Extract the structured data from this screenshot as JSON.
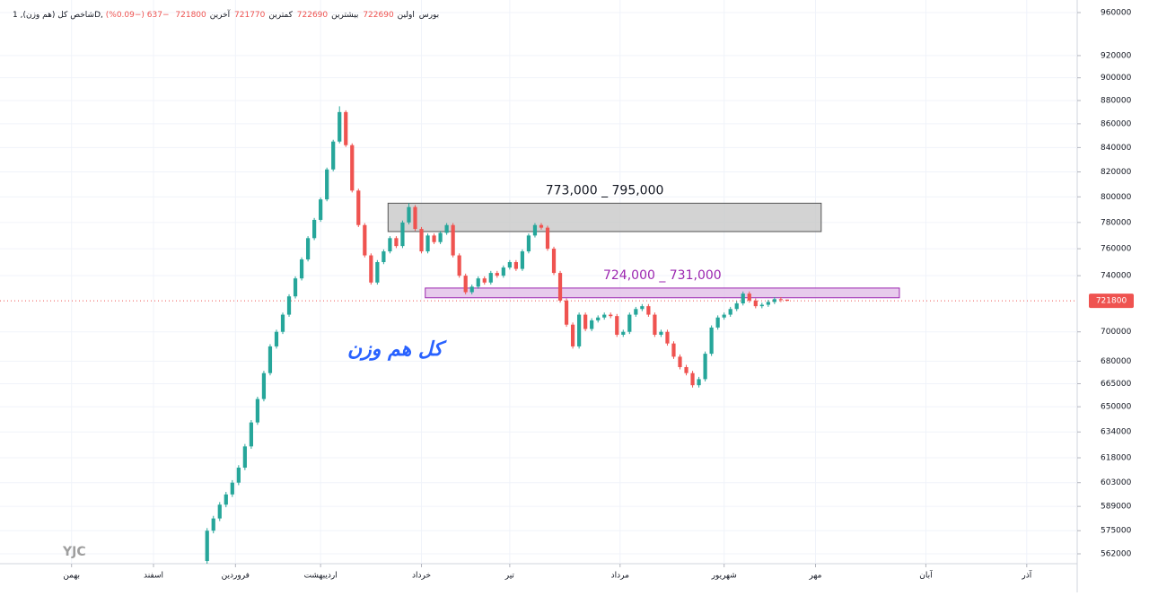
{
  "chart_data": {
    "type": "candlestick",
    "title": "شاخص کل (هم وزن), 1D, بورس",
    "ohlc_header": [
      {
        "label": "اولین",
        "value": 722690
      },
      {
        "label": "بیشترین",
        "value": 722690
      },
      {
        "label": "کمترین",
        "value": 721770
      },
      {
        "label": "آخرین",
        "value": 721800
      }
    ],
    "change": "−637 (−0.09%)",
    "annotation": "کل هم وزن",
    "watermark": "YJC",
    "log_scale": true,
    "grid": true,
    "up_color": "#26a69a",
    "down_color": "#ef5350",
    "ylim": [
      562000,
      960000
    ],
    "yticks": [
      562000,
      575000,
      589000,
      603000,
      618000,
      634000,
      650000,
      665000,
      680000,
      700000,
      740000,
      760000,
      780000,
      800000,
      820000,
      840000,
      860000,
      880000,
      900000,
      920000,
      960000
    ],
    "xlim": [
      0,
      168
    ],
    "xticks": [
      {
        "value": 8.5,
        "label": "بهمن"
      },
      {
        "value": 21.5,
        "label": "اسفند"
      },
      {
        "value": 34.5,
        "label": "فروردین"
      },
      {
        "value": 48,
        "label": "اردیبهشت"
      },
      {
        "value": 64,
        "label": "خرداد"
      },
      {
        "value": 78,
        "label": "تیر"
      },
      {
        "value": 95.5,
        "label": "مرداد"
      },
      {
        "value": 112,
        "label": "شهریور"
      },
      {
        "value": 126.5,
        "label": "مهر"
      },
      {
        "value": 144,
        "label": "آبان"
      },
      {
        "value": 160,
        "label": "آذر"
      }
    ],
    "last_price": 721800,
    "last_price_color": "#ef5350",
    "zones": [
      {
        "low": 773000,
        "high": 795000,
        "x_start": 58.7,
        "x_end": 127.4,
        "label": "773,000 _ 795,000",
        "color": "#c8c8c8",
        "text_color": "#131722"
      },
      {
        "low": 724000,
        "high": 731000,
        "x_start": 64.6,
        "x_end": 139.8,
        "label": "724,000 _ 731,000",
        "color": "#e1bee7",
        "text_color": "#9c27b0"
      }
    ],
    "x": [
      30,
      31,
      32,
      33,
      34,
      35,
      36,
      37,
      38,
      39,
      40,
      41,
      42,
      43,
      44,
      45,
      46,
      47,
      48,
      49,
      50,
      51,
      52,
      53,
      54,
      55,
      56,
      57,
      58,
      59,
      60,
      61,
      62,
      63,
      64,
      65,
      66,
      67,
      68,
      69,
      70,
      71,
      72,
      73,
      74,
      75,
      76,
      77,
      78,
      79,
      80,
      81,
      82,
      83,
      84,
      85,
      86,
      87,
      88,
      89,
      90,
      91,
      92,
      93,
      94,
      95,
      96,
      97,
      98,
      99,
      100,
      101,
      102,
      103,
      104,
      105,
      106,
      107,
      108,
      109,
      110,
      111,
      112,
      113,
      114,
      115,
      116,
      117,
      118,
      119,
      120,
      121,
      122
    ],
    "open": [
      558000,
      575000,
      582000,
      590000,
      596000,
      603000,
      612000,
      625000,
      640000,
      655000,
      672000,
      690000,
      700000,
      712000,
      725000,
      738000,
      752000,
      768000,
      782000,
      798000,
      822000,
      845000,
      870000,
      842000,
      805000,
      778000,
      755000,
      735000,
      750000,
      758000,
      768000,
      762000,
      780000,
      792000,
      775000,
      758000,
      770000,
      765000,
      772000,
      778000,
      755000,
      740000,
      728000,
      732000,
      738000,
      735000,
      742000,
      740000,
      746000,
      750000,
      745000,
      758000,
      770000,
      778000,
      776000,
      760000,
      742000,
      722000,
      705000,
      690000,
      712000,
      702000,
      708000,
      710000,
      712000,
      711000,
      698000,
      700000,
      712000,
      716000,
      718000,
      712000,
      698000,
      700000,
      692000,
      683000,
      676000,
      672000,
      664000,
      668000,
      685000,
      703000,
      710000,
      712000,
      716000,
      720000,
      727000,
      722000,
      718000,
      719000,
      721000,
      723000,
      722690
    ],
    "high": [
      576500,
      583500,
      591500,
      597500,
      604500,
      613500,
      626500,
      641500,
      656500,
      673500,
      691500,
      701500,
      713500,
      726500,
      739500,
      753500,
      769500,
      783500,
      799500,
      823500,
      846500,
      875000,
      871500,
      843500,
      806500,
      779500,
      756500,
      751500,
      759500,
      769500,
      769500,
      781500,
      795000,
      793500,
      776500,
      771500,
      771500,
      773500,
      779500,
      779500,
      756500,
      741500,
      733500,
      739500,
      739500,
      743500,
      743500,
      747500,
      751500,
      751500,
      759500,
      771500,
      779500,
      779500,
      777500,
      761500,
      743500,
      723500,
      706500,
      713500,
      713500,
      709500,
      711500,
      713500,
      713500,
      712500,
      701500,
      713500,
      717500,
      719500,
      719500,
      713500,
      701500,
      701500,
      693500,
      684500,
      677500,
      673500,
      669500,
      686500,
      704500,
      711500,
      713500,
      717500,
      721500,
      728500,
      728500,
      723500,
      720500,
      722500,
      724500,
      724500,
      722690
    ],
    "low": [
      556500,
      573500,
      580500,
      588500,
      594500,
      601500,
      610500,
      623500,
      638500,
      653500,
      670500,
      688500,
      698500,
      710500,
      723500,
      736500,
      750500,
      766500,
      780500,
      796500,
      820500,
      843500,
      840500,
      803500,
      776500,
      753500,
      733500,
      733500,
      748500,
      756500,
      760500,
      760500,
      778500,
      773500,
      756500,
      756500,
      763500,
      763500,
      770500,
      753500,
      738500,
      726500,
      726500,
      730500,
      733500,
      733500,
      738500,
      738500,
      744500,
      743500,
      743500,
      756500,
      768500,
      774500,
      758500,
      740500,
      720500,
      703500,
      688500,
      688500,
      700500,
      700500,
      706500,
      708500,
      709500,
      696500,
      696500,
      698500,
      710500,
      714500,
      710500,
      696500,
      696500,
      690500,
      681500,
      674500,
      670500,
      662500,
      662500,
      666500,
      683500,
      701500,
      708500,
      710500,
      714500,
      718500,
      720500,
      716500,
      716500,
      717500,
      719500,
      720937,
      721770
    ],
    "close": [
      575000,
      582000,
      590000,
      596000,
      603000,
      612000,
      625000,
      640000,
      655000,
      672000,
      690000,
      700000,
      712000,
      725000,
      738000,
      752000,
      768000,
      782000,
      798000,
      822000,
      845000,
      870000,
      842000,
      805000,
      778000,
      755000,
      735000,
      750000,
      758000,
      768000,
      762000,
      780000,
      792000,
      775000,
      758000,
      770000,
      765000,
      772000,
      778000,
      755000,
      740000,
      728000,
      732000,
      738000,
      735000,
      742000,
      740000,
      746000,
      750000,
      745000,
      758000,
      770000,
      778000,
      776000,
      760000,
      742000,
      722000,
      705000,
      690000,
      712000,
      702000,
      708000,
      710000,
      712000,
      711000,
      698000,
      700000,
      712000,
      716000,
      718000,
      712000,
      698000,
      700000,
      692000,
      683000,
      676000,
      672000,
      664000,
      668000,
      685000,
      703000,
      710000,
      712000,
      716000,
      720000,
      727000,
      722000,
      718000,
      719000,
      721000,
      723000,
      722437,
      721800
    ]
  }
}
